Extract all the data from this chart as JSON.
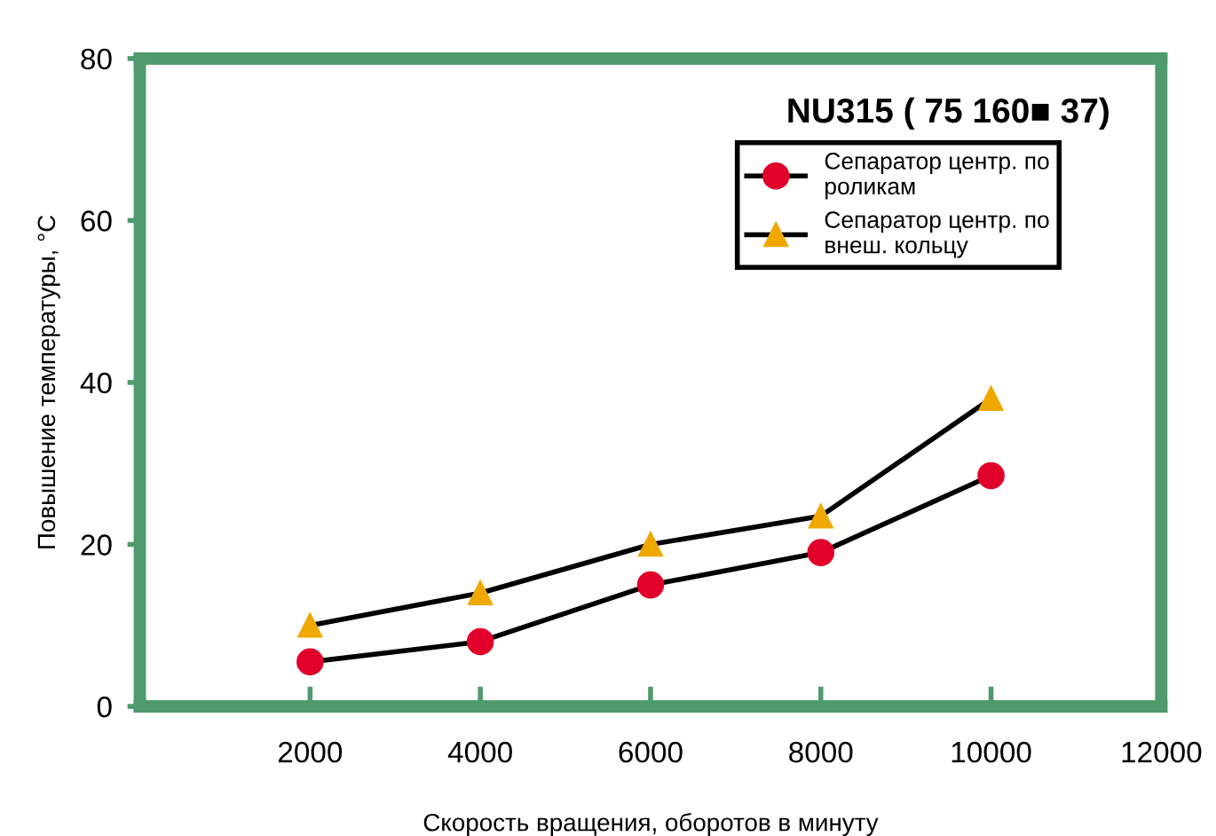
{
  "chart_data": {
    "type": "line",
    "title": "NU315 ( 75 160■ 37)",
    "xlabel": "Скорость вращения, оборотов в минуту",
    "ylabel": "Повышение температуры, °C",
    "x": [
      2000,
      4000,
      6000,
      8000,
      10000
    ],
    "series": [
      {
        "name": "Сепаратор центр. по роликам",
        "color": "#e0002a",
        "marker": "circle",
        "values": [
          5.5,
          8,
          15,
          19,
          28.5
        ]
      },
      {
        "name": "Сепаратор центр. по внеш. кольцу",
        "color": "#f0a800",
        "marker": "triangle",
        "values": [
          10,
          14,
          20,
          23.5,
          38
        ]
      }
    ],
    "xlim": [
      0,
      12000
    ],
    "xticks": [
      2000,
      4000,
      6000,
      8000,
      10000,
      12000
    ],
    "ylim": [
      0,
      80
    ],
    "yticks": [
      0,
      20,
      40,
      60,
      80
    ],
    "grid": false,
    "legend": "top right"
  }
}
